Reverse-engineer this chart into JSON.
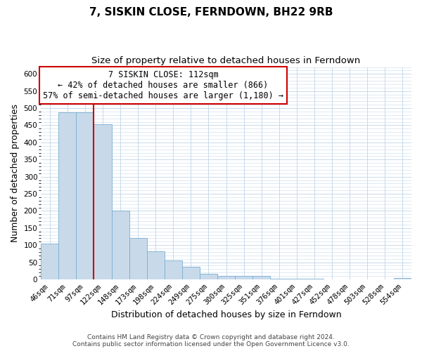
{
  "title": "7, SISKIN CLOSE, FERNDOWN, BH22 9RB",
  "subtitle": "Size of property relative to detached houses in Ferndown",
  "xlabel": "Distribution of detached houses by size in Ferndown",
  "ylabel": "Number of detached properties",
  "bar_labels": [
    "46sqm",
    "71sqm",
    "97sqm",
    "122sqm",
    "148sqm",
    "173sqm",
    "198sqm",
    "224sqm",
    "249sqm",
    "275sqm",
    "300sqm",
    "325sqm",
    "351sqm",
    "376sqm",
    "401sqm",
    "427sqm",
    "452sqm",
    "478sqm",
    "503sqm",
    "528sqm",
    "554sqm"
  ],
  "bar_values": [
    105,
    487,
    487,
    453,
    201,
    120,
    83,
    55,
    37,
    16,
    11,
    10,
    10,
    2,
    2,
    2,
    1,
    0,
    0,
    0,
    4
  ],
  "bar_color": "#c8daea",
  "bar_edgecolor": "#7aadd0",
  "vline_x": 3.0,
  "vline_color": "#cc0000",
  "annotation_title": "7 SISKIN CLOSE: 112sqm",
  "annotation_line1": "← 42% of detached houses are smaller (866)",
  "annotation_line2": "57% of semi-detached houses are larger (1,180) →",
  "annotation_box_edgecolor": "#cc0000",
  "ylim": [
    0,
    620
  ],
  "yticks": [
    0,
    50,
    100,
    150,
    200,
    250,
    300,
    350,
    400,
    450,
    500,
    550,
    600
  ],
  "footer1": "Contains HM Land Registry data © Crown copyright and database right 2024.",
  "footer2": "Contains public sector information licensed under the Open Government Licence v3.0.",
  "bg_color": "#ffffff",
  "grid_color": "#c8daea",
  "title_fontsize": 11,
  "subtitle_fontsize": 9.5,
  "axis_label_fontsize": 9,
  "tick_fontsize": 7.5,
  "annotation_fontsize": 8.5,
  "footer_fontsize": 6.5
}
